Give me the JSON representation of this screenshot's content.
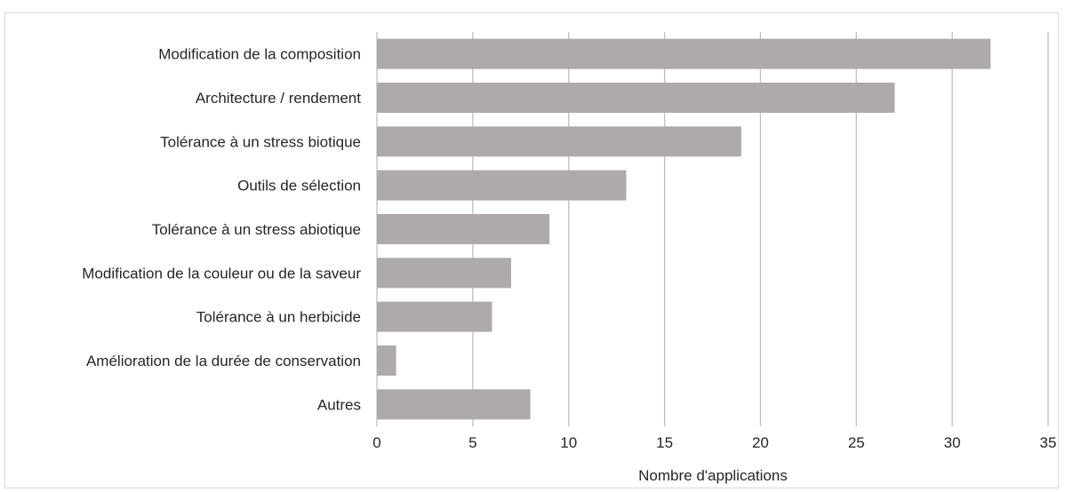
{
  "chart_data": {
    "type": "bar",
    "orientation": "horizontal",
    "categories": [
      "Modification de la composition",
      "Architecture / rendement",
      "Tolérance à un stress biotique",
      "Outils de sélection",
      "Tolérance à un stress abiotique",
      "Modification de la couleur ou de la saveur",
      "Tolérance à un herbicide",
      "Amélioration de la durée de conservation",
      "Autres"
    ],
    "values": [
      32,
      27,
      19,
      13,
      9,
      7,
      6,
      1,
      8
    ],
    "title": "",
    "xlabel": "Nombre d'applications",
    "ylabel": "",
    "xlim": [
      0,
      35
    ],
    "xticks": [
      0,
      5,
      10,
      15,
      20,
      25,
      30,
      35
    ],
    "grid": "vertical",
    "legend": "none",
    "bar_color": "#aeaaaa",
    "grid_color": "#bfbfbf"
  }
}
